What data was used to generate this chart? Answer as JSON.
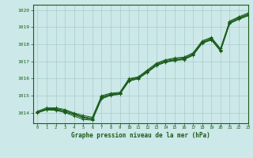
{
  "title": "Graphe pression niveau de la mer (hPa)",
  "background_color": "#cce8e8",
  "grid_color": "#aacccc",
  "line_color": "#1a5c1a",
  "xlim": [
    -0.5,
    23
  ],
  "ylim": [
    1013.4,
    1020.3
  ],
  "yticks": [
    1014,
    1015,
    1016,
    1017,
    1018,
    1019,
    1020
  ],
  "xticks": [
    0,
    1,
    2,
    3,
    4,
    5,
    6,
    7,
    8,
    9,
    10,
    11,
    12,
    13,
    14,
    15,
    16,
    17,
    18,
    19,
    20,
    21,
    22,
    23
  ],
  "series": [
    [
      1014.05,
      1014.2,
      1014.2,
      1014.1,
      1013.95,
      1013.75,
      1013.65,
      1014.9,
      1015.05,
      1015.15,
      1015.9,
      1016.05,
      1016.4,
      1016.8,
      1017.0,
      1017.1,
      1017.15,
      1017.4,
      1018.1,
      1018.3,
      1017.65,
      1019.25,
      1019.5,
      1019.75
    ],
    [
      1014.05,
      1014.2,
      1014.2,
      1014.05,
      1013.9,
      1013.7,
      1013.6,
      1014.85,
      1015.05,
      1015.1,
      1015.85,
      1016.0,
      1016.35,
      1016.75,
      1016.95,
      1017.05,
      1017.1,
      1017.35,
      1018.05,
      1018.25,
      1017.6,
      1019.2,
      1019.45,
      1019.65
    ],
    [
      1014.05,
      1014.25,
      1014.25,
      1014.15,
      1013.95,
      1013.78,
      1013.68,
      1014.95,
      1015.1,
      1015.15,
      1015.95,
      1016.07,
      1016.45,
      1016.85,
      1017.05,
      1017.15,
      1017.2,
      1017.45,
      1018.15,
      1018.35,
      1017.7,
      1019.3,
      1019.55,
      1019.75
    ],
    [
      1014.1,
      1014.3,
      1014.3,
      1014.2,
      1014.0,
      1013.85,
      1013.75,
      1015.0,
      1015.15,
      1015.2,
      1016.0,
      1016.1,
      1016.5,
      1016.9,
      1017.1,
      1017.2,
      1017.25,
      1017.5,
      1018.2,
      1018.4,
      1017.75,
      1019.35,
      1019.6,
      1019.82
    ],
    [
      1014.0,
      1014.18,
      1014.15,
      1014.02,
      1013.82,
      1013.62,
      1013.58,
      1014.82,
      1015.02,
      1015.08,
      1015.88,
      1015.98,
      1016.38,
      1016.78,
      1016.98,
      1017.08,
      1017.12,
      1017.38,
      1018.08,
      1018.28,
      1017.62,
      1019.22,
      1019.48,
      1019.68
    ]
  ]
}
